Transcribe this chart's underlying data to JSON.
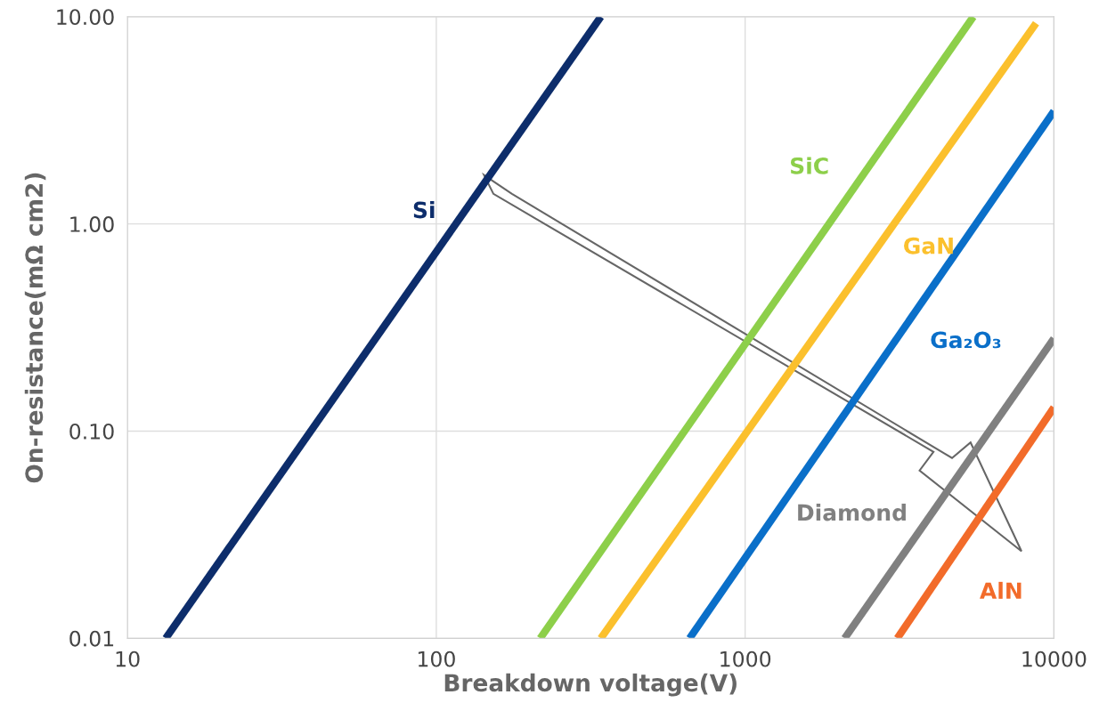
{
  "chart_data": {
    "type": "line",
    "xlabel": "Breakdown voltage(V)",
    "ylabel": "On-resistance(mΩ cm2)",
    "log": "xy",
    "xlim": [
      10,
      10000
    ],
    "ylim": [
      0.01,
      10
    ],
    "xticks": [
      10,
      100,
      1000,
      10000
    ],
    "yticks": [
      {
        "value": 0.01,
        "label": "0.01"
      },
      {
        "value": 0.1,
        "label": "0.10"
      },
      {
        "value": 1,
        "label": "1.00"
      },
      {
        "value": 10,
        "label": "10.00"
      }
    ],
    "grid": true,
    "marker": "none",
    "line_style": "solid",
    "series": [
      {
        "name": "Si",
        "color": "#0d2d6b",
        "x": [
          13.3,
          341
        ],
        "values": [
          0.01,
          10
        ]
      },
      {
        "name": "SiC",
        "color": "#8dcf4a",
        "x": [
          217,
          5480
        ],
        "values": [
          0.01,
          10
        ]
      },
      {
        "name": "GaN",
        "color": "#fbc02d",
        "x": [
          341,
          8750
        ],
        "values": [
          0.01,
          9.3
        ]
      },
      {
        "name": "Ga₂O₃",
        "color": "#0a6fc9",
        "x": [
          661,
          10000
        ],
        "values": [
          0.01,
          3.5
        ]
      },
      {
        "name": "Diamond",
        "color": "#808080",
        "x": [
          2100,
          10000
        ],
        "values": [
          0.01,
          0.28
        ]
      },
      {
        "name": "AlN",
        "color": "#f26b2a",
        "x": [
          3110,
          10000
        ],
        "values": [
          0.01,
          0.13
        ]
      }
    ]
  }
}
